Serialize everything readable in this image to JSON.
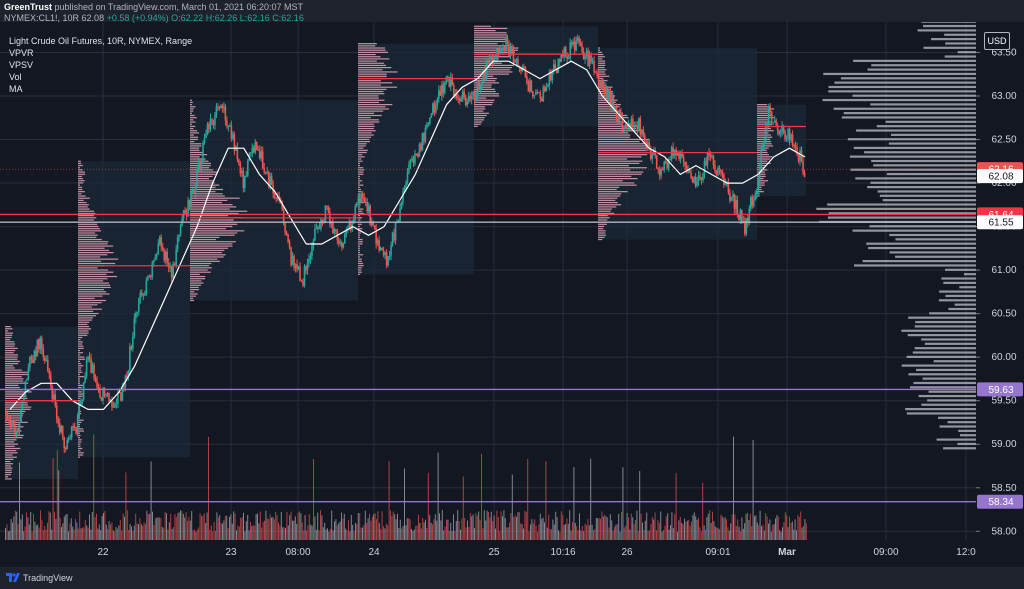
{
  "header": {
    "author": "GreenTrust",
    "published": "published on TradingView.com, March 01, 2021 06:20:07 MST",
    "symbol": "NYMEX:CL1!, 10R",
    "last": "62.08",
    "change": "+0.58 (+0.94%)",
    "o": "O:62.22",
    "h": "H:62.26",
    "l": "L:62.16",
    "c": "C:62.16"
  },
  "legend": {
    "title": "Light Crude Oil Futures, 10R, NYMEX, Range",
    "indicators": [
      "VPVR",
      "VPSV",
      "Vol",
      "MA"
    ]
  },
  "currency": "USD",
  "footer": {
    "brand": "TradingView"
  },
  "colors": {
    "background": "#131722",
    "grid": "#2a2e39",
    "up": "#26a69a",
    "down": "#ef5350",
    "ma": "#ffffff",
    "poc": "#f23645",
    "session_profile": "#e8a5b4",
    "vpvr": "#b2b5be",
    "session_box": "#1c2939",
    "purple_line": "#9575cd"
  },
  "chart_data": {
    "type": "candlestick",
    "title": "Light Crude Oil Futures, 10R, NYMEX, Range",
    "y_axis": {
      "ticks": [
        "63.50",
        "63.00",
        "62.50",
        "62.00",
        "61.50",
        "61.00",
        "60.50",
        "60.00",
        "59.50",
        "59.00",
        "58.50",
        "58.00"
      ],
      "range": [
        57.9,
        63.85
      ]
    },
    "x_axis": {
      "ticks": [
        "22",
        "23",
        "08:00",
        "24",
        "25",
        "10:16",
        "26",
        "09:01",
        "Mar",
        "09:00",
        "12:0"
      ]
    },
    "price_labels": [
      {
        "value": 62.16,
        "label": "62.16",
        "kind": "last",
        "color": "#ef5350"
      },
      {
        "value": 62.08,
        "label": "62.08",
        "kind": "close",
        "color": "#131722"
      },
      {
        "value": 61.64,
        "label": "61.64",
        "kind": "poc",
        "color": "#f23645"
      },
      {
        "value": 61.55,
        "label": "61.55",
        "kind": "level",
        "color": "#131722"
      },
      {
        "value": 59.63,
        "label": "59.63",
        "kind": "horizontal",
        "color": "#9575cd"
      },
      {
        "value": 58.34,
        "label": "58.34",
        "kind": "horizontal",
        "color": "#9575cd"
      }
    ],
    "session_pocs": [
      59.5,
      61.05,
      61.6,
      63.2,
      63.48,
      62.35,
      62.65
    ],
    "price_path": [
      59.4,
      59.1,
      59.9,
      60.2,
      59.6,
      59.0,
      59.2,
      60.0,
      59.6,
      59.5,
      59.6,
      60.5,
      60.9,
      61.3,
      61.0,
      61.6,
      62.0,
      62.6,
      62.9,
      62.6,
      62.0,
      62.5,
      62.1,
      61.8,
      61.1,
      60.9,
      61.4,
      61.7,
      61.3,
      61.5,
      61.9,
      61.4,
      61.1,
      61.6,
      62.2,
      62.5,
      62.9,
      63.2,
      63.0,
      62.9,
      63.2,
      63.5,
      63.6,
      63.4,
      63.1,
      63.0,
      63.3,
      63.5,
      63.6,
      63.4,
      63.1,
      62.9,
      62.6,
      62.7,
      62.4,
      62.1,
      62.4,
      62.2,
      62.0,
      62.3,
      62.1,
      61.8,
      61.5,
      62.0,
      62.8,
      62.6,
      62.5,
      62.16
    ],
    "ma_values": [
      59.4,
      59.6,
      59.7,
      59.7,
      59.5,
      59.4,
      59.4,
      59.6,
      59.9,
      60.3,
      60.7,
      61.1,
      61.5,
      62.0,
      62.4,
      62.4,
      62.1,
      61.9,
      61.6,
      61.3,
      61.3,
      61.4,
      61.5,
      61.4,
      61.5,
      61.8,
      62.1,
      62.5,
      62.9,
      63.1,
      63.2,
      63.4,
      63.4,
      63.3,
      63.2,
      63.3,
      63.4,
      63.3,
      63.0,
      62.8,
      62.6,
      62.4,
      62.3,
      62.1,
      62.2,
      62.1,
      62.0,
      62.0,
      62.1,
      62.3,
      62.4,
      62.3
    ]
  }
}
